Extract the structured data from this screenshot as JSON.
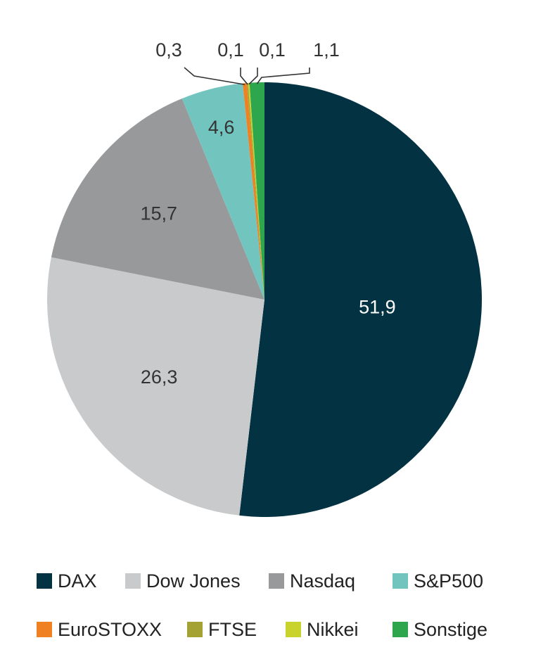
{
  "chart_data": {
    "type": "pie",
    "start": "12 o'clock, clockwise",
    "slices": [
      {
        "name": "DAX",
        "value": 51.9,
        "label": "51,9",
        "color": "#033342",
        "label_color": "#ffffff"
      },
      {
        "name": "Dow Jones",
        "value": 26.3,
        "label": "26,3",
        "color": "#c9cacb",
        "label_color": "#333333"
      },
      {
        "name": "Nasdaq",
        "value": 15.7,
        "label": "15,7",
        "color": "#98999b",
        "label_color": "#333333"
      },
      {
        "name": "S&P500",
        "value": 4.6,
        "label": "4,6",
        "color": "#72c5bf",
        "label_color": "#333333"
      },
      {
        "name": "EuroSTOXX",
        "value": 0.3,
        "label": "0,3",
        "color": "#ef8122",
        "label_color": "#333333"
      },
      {
        "name": "FTSE",
        "value": 0.1,
        "label": "0,1",
        "color": "#a4a232",
        "label_color": "#333333"
      },
      {
        "name": "Nikkei",
        "value": 0.1,
        "label": "0,1",
        "color": "#c8d42d",
        "label_color": "#333333"
      },
      {
        "name": "Sonstige",
        "value": 1.1,
        "label": "1,1",
        "color": "#2ea64e",
        "label_color": "#333333"
      }
    ]
  }
}
